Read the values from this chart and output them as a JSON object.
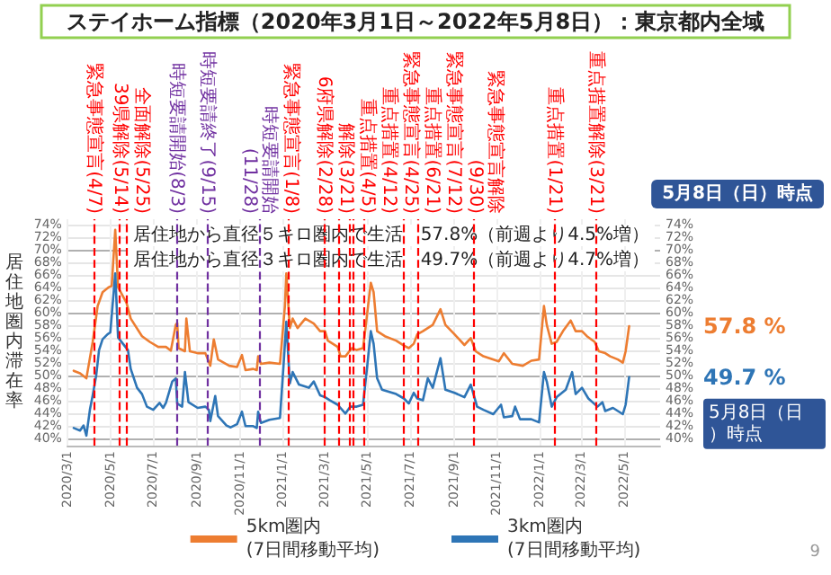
{
  "chart_data": {
    "type": "line",
    "title": "ステイホーム指標（2020年3月1日～2022年5月8日）：東京都内全域",
    "ylabel": "居住地圏内滞在率",
    "xlim": [
      "2020-03-01",
      "2022-06-21"
    ],
    "ylim": [
      38.8,
      74.8
    ],
    "yticks": [
      {
        "value": 40,
        "label": "40%"
      },
      {
        "value": 42,
        "label": "42%"
      },
      {
        "value": 44,
        "label": "44%"
      },
      {
        "value": 46,
        "label": "46%"
      },
      {
        "value": 48,
        "label": "48%"
      },
      {
        "value": 50,
        "label": "50%"
      },
      {
        "value": 52,
        "label": "52%"
      },
      {
        "value": 54,
        "label": "54%"
      },
      {
        "value": 56,
        "label": "56%"
      },
      {
        "value": 58,
        "label": "58%"
      },
      {
        "value": 60,
        "label": "60%"
      },
      {
        "value": 62,
        "label": "62%"
      },
      {
        "value": 64,
        "label": "64%"
      },
      {
        "value": 66,
        "label": "66%"
      },
      {
        "value": 68,
        "label": "68%"
      },
      {
        "value": 70,
        "label": "70%"
      },
      {
        "value": 72,
        "label": "72%"
      },
      {
        "value": 74,
        "label": "74%"
      }
    ],
    "y2lim": [
      38.8,
      74.8
    ],
    "y2ticks": [
      {
        "value": 40,
        "label": "40%"
      },
      {
        "value": 42,
        "label": "42%"
      },
      {
        "value": 44,
        "label": "44%"
      },
      {
        "value": 46,
        "label": "46%"
      },
      {
        "value": 48,
        "label": "48%"
      },
      {
        "value": 50,
        "label": "50%"
      },
      {
        "value": 52,
        "label": "52%"
      },
      {
        "value": 54,
        "label": "54%"
      },
      {
        "value": 56,
        "label": "56%"
      },
      {
        "value": 58,
        "label": "58%"
      },
      {
        "value": 60,
        "label": "60%"
      },
      {
        "value": 62,
        "label": "62%"
      },
      {
        "value": 64,
        "label": "64%"
      },
      {
        "value": 66,
        "label": "66%"
      },
      {
        "value": 68,
        "label": "68%"
      },
      {
        "value": 70,
        "label": "70%"
      },
      {
        "value": 72,
        "label": "72%"
      },
      {
        "value": 74,
        "label": "74%"
      }
    ],
    "xticks": [
      {
        "value": "2020-03-01",
        "label": "2020/3/1"
      },
      {
        "value": "2020-05-01",
        "label": "2020/5/1"
      },
      {
        "value": "2020-07-01",
        "label": "2020/7/1"
      },
      {
        "value": "2020-09-01",
        "label": "2020/9/1"
      },
      {
        "value": "2020-11-01",
        "label": "2020/11/1"
      },
      {
        "value": "2021-01-01",
        "label": "2021/1/1"
      },
      {
        "value": "2021-03-01",
        "label": "2021/3/1"
      },
      {
        "value": "2021-05-01",
        "label": "2021/5/1"
      },
      {
        "value": "2021-07-01",
        "label": "2021/7/1"
      },
      {
        "value": "2021-09-01",
        "label": "2021/9/1"
      },
      {
        "value": "2021-11-01",
        "label": "2021/11/1"
      },
      {
        "value": "2022-01-01",
        "label": "2022/1/1"
      },
      {
        "value": "2022-03-01",
        "label": "2022/3/1"
      },
      {
        "value": "2022-05-01",
        "label": "2022/5/1"
      }
    ],
    "grid": true,
    "legend": "bottom",
    "marker": "none",
    "line_style": "solid",
    "series": [
      {
        "name": "5km圏内\n(7日間移動平均)",
        "color": "#ed7d31",
        "x": [
          "2020-03-10",
          "2020-03-19",
          "2020-03-28",
          "2020-04-06",
          "2020-04-13",
          "2020-04-20",
          "2020-04-29",
          "2020-05-03",
          "2020-05-08",
          "2020-05-12",
          "2020-05-24",
          "2020-05-30",
          "2020-06-15",
          "2020-06-26",
          "2020-07-08",
          "2020-07-19",
          "2020-07-26",
          "2020-08-02",
          "2020-08-04",
          "2020-08-06",
          "2020-08-15",
          "2020-08-17",
          "2020-08-22",
          "2020-09-02",
          "2020-09-13",
          "2020-09-20",
          "2020-09-25",
          "2020-10-01",
          "2020-10-17",
          "2020-10-28",
          "2020-11-04",
          "2020-11-09",
          "2020-11-20",
          "2020-11-25",
          "2020-11-27",
          "2020-12-01",
          "2020-12-13",
          "2020-12-28",
          "2021-01-04",
          "2021-01-06",
          "2021-01-11",
          "2021-01-15",
          "2021-01-22",
          "2021-02-02",
          "2021-02-14",
          "2021-02-23",
          "2021-03-02",
          "2021-03-06",
          "2021-03-13",
          "2021-03-20",
          "2021-03-24",
          "2021-03-31",
          "2021-04-09",
          "2021-04-16",
          "2021-04-25",
          "2021-04-29",
          "2021-05-06",
          "2021-05-10",
          "2021-05-15",
          "2021-05-26",
          "2021-06-11",
          "2021-06-22",
          "2021-06-29",
          "2021-07-06",
          "2021-07-11",
          "2021-07-19",
          "2021-08-02",
          "2021-08-13",
          "2021-08-20",
          "2021-09-02",
          "2021-09-16",
          "2021-09-25",
          "2021-10-02",
          "2021-10-13",
          "2021-11-04",
          "2021-11-11",
          "2021-11-23",
          "2021-12-08",
          "2021-12-20",
          "2021-12-31",
          "2022-01-07",
          "2022-01-11",
          "2022-01-18",
          "2022-01-25",
          "2022-02-03",
          "2022-02-14",
          "2022-02-21",
          "2022-03-02",
          "2022-03-09",
          "2022-03-20",
          "2022-03-26",
          "2022-04-04",
          "2022-04-11",
          "2022-04-22",
          "2022-04-29",
          "2022-05-03",
          "2022-05-08"
        ],
        "values": [
          50.7,
          50.3,
          49.5,
          55.3,
          61,
          63.2,
          64,
          64.2,
          73.1,
          64,
          61.5,
          59,
          56.2,
          55.3,
          54.5,
          54.5,
          53.9,
          58,
          58.3,
          54.3,
          53.8,
          59,
          53.8,
          53.5,
          53.5,
          51.5,
          55.7,
          52.5,
          51.5,
          51.3,
          53.2,
          50.8,
          51,
          50.8,
          53,
          51.8,
          52,
          51.8,
          61,
          66.2,
          57.5,
          59,
          57.5,
          59,
          58.2,
          57,
          57,
          55.5,
          55,
          54.5,
          53,
          53,
          54.3,
          54,
          54.3,
          58,
          64.7,
          63.2,
          57,
          56.2,
          55.5,
          54.7,
          54.3,
          55,
          56.5,
          57,
          58,
          60.5,
          58,
          56.5,
          54.8,
          55.9,
          53.8,
          53,
          52.2,
          53.5,
          51.8,
          51.5,
          52.3,
          52.5,
          61,
          58,
          55,
          55.3,
          57,
          58.7,
          57,
          57,
          56.2,
          55.3,
          53.8,
          53.5,
          53,
          52.5,
          52,
          53.8,
          57.8
        ]
      },
      {
        "name": "3km圏内\n(7日間移動平均)",
        "color": "#2e75b6",
        "x": [
          "2020-03-10",
          "2020-03-19",
          "2020-03-24",
          "2020-03-28",
          "2020-04-02",
          "2020-04-06",
          "2020-04-11",
          "2020-04-15",
          "2020-04-20",
          "2020-04-27",
          "2020-05-01",
          "2020-05-03",
          "2020-05-08",
          "2020-05-12",
          "2020-05-19",
          "2020-05-26",
          "2020-05-30",
          "2020-06-08",
          "2020-06-15",
          "2020-06-22",
          "2020-07-01",
          "2020-07-10",
          "2020-07-15",
          "2020-07-19",
          "2020-07-28",
          "2020-08-02",
          "2020-08-04",
          "2020-08-11",
          "2020-08-15",
          "2020-08-20",
          "2020-09-02",
          "2020-09-13",
          "2020-09-18",
          "2020-09-20",
          "2020-09-27",
          "2020-10-01",
          "2020-10-13",
          "2020-10-19",
          "2020-10-28",
          "2020-11-04",
          "2020-11-09",
          "2020-11-20",
          "2020-11-25",
          "2020-11-27",
          "2020-12-01",
          "2020-12-13",
          "2020-12-28",
          "2021-01-02",
          "2021-01-06",
          "2021-01-11",
          "2021-01-15",
          "2021-01-24",
          "2021-02-07",
          "2021-02-14",
          "2021-02-23",
          "2021-03-02",
          "2021-03-09",
          "2021-03-20",
          "2021-03-31",
          "2021-04-07",
          "2021-04-16",
          "2021-04-25",
          "2021-05-01",
          "2021-05-06",
          "2021-05-10",
          "2021-05-15",
          "2021-05-22",
          "2021-06-11",
          "2021-06-22",
          "2021-06-29",
          "2021-07-06",
          "2021-07-11",
          "2021-07-19",
          "2021-07-26",
          "2021-08-02",
          "2021-08-13",
          "2021-08-20",
          "2021-09-02",
          "2021-09-16",
          "2021-09-25",
          "2021-10-04",
          "2021-10-13",
          "2021-10-27",
          "2021-11-07",
          "2021-11-11",
          "2021-11-23",
          "2021-11-27",
          "2021-12-04",
          "2021-12-20",
          "2021-12-31",
          "2022-01-07",
          "2022-01-11",
          "2022-01-18",
          "2022-01-25",
          "2022-02-07",
          "2022-02-16",
          "2022-02-21",
          "2022-03-02",
          "2022-03-11",
          "2022-03-24",
          "2022-03-31",
          "2022-04-04",
          "2022-04-15",
          "2022-04-29",
          "2022-05-03",
          "2022-05-08"
        ],
        "values": [
          41.6,
          41.2,
          42,
          40.4,
          44.5,
          46.8,
          50,
          54,
          55.7,
          56.5,
          56.8,
          59.5,
          66.2,
          56,
          55,
          54,
          51,
          48,
          47,
          45,
          44.5,
          45.6,
          44.8,
          45.6,
          49,
          49.5,
          45.5,
          45,
          50.5,
          45.7,
          44.8,
          45,
          44.5,
          42.7,
          46.7,
          43.5,
          42,
          41.7,
          42.2,
          44.2,
          41.9,
          41.9,
          41.6,
          44.2,
          42.4,
          42.9,
          43.2,
          51.5,
          58.5,
          48.7,
          50.5,
          48.5,
          48,
          49,
          46.8,
          46.5,
          46,
          45.3,
          43.9,
          45,
          45,
          45.3,
          51.5,
          57,
          55,
          49.5,
          47.7,
          47,
          46.3,
          45.5,
          47.2,
          46.3,
          46,
          49.5,
          48,
          52.7,
          47.7,
          47.2,
          46.5,
          48.5,
          45,
          44.5,
          43.8,
          45.3,
          43.3,
          43.5,
          45,
          43,
          43,
          42.5,
          50.5,
          49,
          45,
          46.5,
          47.7,
          50.5,
          47,
          48,
          46.3,
          45,
          45.7,
          44.3,
          44.8,
          43.8,
          45.3,
          49.7
        ]
      }
    ],
    "ref_lines": [
      {
        "axis": "x",
        "value": "2020-04-07",
        "label": "緊急事態宣言(4/7)",
        "color": "#ff0000",
        "line_style": "dashed"
      },
      {
        "axis": "x",
        "value": "2020-05-14",
        "label": "39県解除(5/14)",
        "color": "#ff0000",
        "line_style": "dashed"
      },
      {
        "axis": "x",
        "value": "2020-05-25",
        "label": "全面解除(5/25)",
        "color": "#ff0000",
        "line_style": "dashed"
      },
      {
        "axis": "x",
        "value": "2020-08-03",
        "label": "時短要請開始(8/3)",
        "color": "#7030a0",
        "line_style": "dashed"
      },
      {
        "axis": "x",
        "value": "2020-09-15",
        "label": "時短要請終了(9/15)",
        "color": "#7030a0",
        "line_style": "dashed"
      },
      {
        "axis": "x",
        "value": "2020-11-28",
        "label": "時短要請開始(11/28)",
        "color": "#7030a0",
        "line_style": "dashed"
      },
      {
        "axis": "x",
        "value": "2021-01-08",
        "label": "緊急事態宣言(1/8)",
        "color": "#ff0000",
        "line_style": "dashed"
      },
      {
        "axis": "x",
        "value": "2021-02-28",
        "label": "6府県解除(2/28)",
        "color": "#ff0000",
        "line_style": "dashed"
      },
      {
        "axis": "x",
        "value": "2021-03-21",
        "label": "解除(3/21)",
        "color": "#ff0000",
        "line_style": "dashed"
      },
      {
        "axis": "x",
        "value": "2021-04-05",
        "label": "重点措置(4/5)",
        "color": "#ff0000",
        "line_style": "dashed"
      },
      {
        "axis": "x",
        "value": "2021-04-12",
        "label": "重点措置(4/12)",
        "color": "#ff0000",
        "line_style": "dashed"
      },
      {
        "axis": "x",
        "value": "2021-04-25",
        "label": "緊急事態宣言(4/25)",
        "color": "#ff0000",
        "line_style": "dashed"
      },
      {
        "axis": "x",
        "value": "2021-06-21",
        "label": "重点措置(6/21)",
        "color": "#ff0000",
        "line_style": "dashed"
      },
      {
        "axis": "x",
        "value": "2021-07-12",
        "label": "緊急事態宣言(7/12)",
        "color": "#ff0000",
        "line_style": "dashed"
      },
      {
        "axis": "x",
        "value": "2021-09-30",
        "label": "緊急事態宣言解除(9/30)",
        "color": "#ff0000",
        "line_style": "dashed"
      },
      {
        "axis": "x",
        "value": "2022-01-21",
        "label": "重点措置(1/21)",
        "color": "#ff0000",
        "line_style": "dashed"
      },
      {
        "axis": "x",
        "value": "2022-03-21",
        "label": "重点措置解除(3/21)",
        "color": "#ff0000",
        "line_style": "dashed"
      }
    ],
    "annotations": [
      "5月8日（日）時点",
      "居住地から直径５キロ圏内で生活　57.8%（前週より4.5%増）",
      "居住地から直径３キロ圏内で生活　49.7%（前週より4.7%増）",
      "57.8 %",
      "49.7 %",
      "5月8日（日）時点",
      "9"
    ]
  }
}
